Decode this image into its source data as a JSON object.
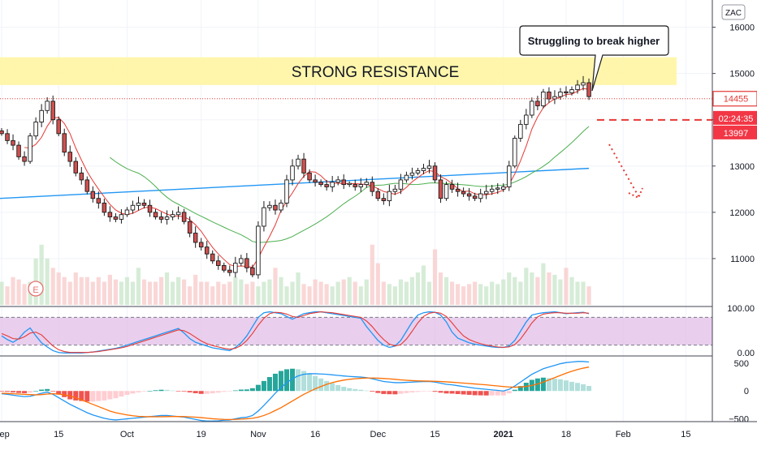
{
  "symbol": "ZAC",
  "chart_data": {
    "type": "candlestick",
    "y_range": [
      10000,
      16500
    ],
    "price_ticks": [
      11000,
      12000,
      13000,
      14000,
      15000,
      16000
    ],
    "price_tick_labels": [
      "11000",
      "12000",
      "13000",
      "14000",
      "15000",
      "16000"
    ],
    "x_ticks": [
      {
        "i": 0,
        "label": "Sep"
      },
      {
        "i": 10,
        "label": "15"
      },
      {
        "i": 22,
        "label": "Oct"
      },
      {
        "i": 35,
        "label": "19"
      },
      {
        "i": 45,
        "label": "Nov"
      },
      {
        "i": 55,
        "label": "16"
      },
      {
        "i": 66,
        "label": "Dec"
      },
      {
        "i": 76,
        "label": "15"
      },
      {
        "i": 88,
        "label": "2021"
      },
      {
        "i": 99,
        "label": "18"
      },
      {
        "i": 109,
        "label": "Feb"
      },
      {
        "i": 120,
        "label": "15"
      }
    ],
    "closes": [
      13700,
      13550,
      13450,
      13200,
      13100,
      13650,
      13950,
      14200,
      14400,
      14000,
      13700,
      13300,
      13100,
      12850,
      12700,
      12450,
      12300,
      12200,
      12000,
      11900,
      11850,
      11950,
      12050,
      12150,
      12200,
      12150,
      12000,
      11900,
      11850,
      11900,
      11950,
      12000,
      11800,
      11550,
      11350,
      11250,
      11100,
      10950,
      10850,
      10750,
      10700,
      10900,
      11000,
      10800,
      10650,
      11700,
      12100,
      12150,
      12050,
      12200,
      12700,
      13000,
      13150,
      12850,
      12700,
      12650,
      12600,
      12550,
      12650,
      12700,
      12600,
      12600,
      12550,
      12600,
      12650,
      12450,
      12300,
      12250,
      12450,
      12500,
      12700,
      12800,
      12850,
      12900,
      12950,
      13000,
      12700,
      12300,
      12600,
      12500,
      12450,
      12400,
      12350,
      12300,
      12400,
      12450,
      12500,
      12500,
      12550,
      13000,
      13600,
      13900,
      14100,
      14400,
      14300,
      14600,
      14450,
      14500,
      14600,
      14580,
      14650,
      14750,
      14800,
      14500
    ],
    "volumes": [
      10500,
      10400,
      10600,
      10550,
      10450,
      10500,
      11000,
      11300,
      11000,
      10800,
      10700,
      10600,
      10500,
      10700,
      10600,
      10600,
      10500,
      10600,
      10500,
      10650,
      10550,
      10500,
      10600,
      10500,
      10800,
      10550,
      10500,
      10500,
      10600,
      10700,
      10500,
      10600,
      10550,
      10400,
      10650,
      10500,
      10500,
      10400,
      10500,
      10450,
      10500,
      10600,
      10550,
      10450,
      10500,
      10400,
      10500,
      10550,
      10800,
      10600,
      10400,
      10500,
      10700,
      10450,
      10400,
      10550,
      10500,
      10450,
      10400,
      10500,
      10550,
      10600,
      10500,
      10400,
      10550,
      11300,
      10900,
      10500,
      10450,
      10400,
      10550,
      10500,
      10600,
      10700,
      10850,
      10500,
      11200,
      10700,
      10600,
      10500,
      10450,
      10400,
      10450,
      10500,
      10450,
      10400,
      10500,
      10450,
      10550,
      10700,
      10600,
      10500,
      10800,
      10700,
      10600,
      10900,
      10700,
      10650,
      10550,
      10800,
      10600,
      10500,
      10500,
      10400
    ],
    "ma20_first_index": 19,
    "ma20_last_value": 14000,
    "ma200_start": 12300,
    "ma200_end": 12950,
    "current_price": "14455",
    "time_to_close": "02:24:35",
    "target_price": "13997",
    "target_value": 13997,
    "resistance_zone": [
      14750,
      15350
    ],
    "resistance_label": "STRONG RESISTANCE",
    "callout_text": "Struggling to break higher",
    "earnings_marker": "E",
    "stochastic": {
      "range": [
        0,
        100
      ],
      "upper": 80,
      "lower": 20,
      "tick_labels": [
        "100.00",
        "0.00"
      ],
      "k": [
        40,
        32,
        26,
        34,
        48,
        57,
        40,
        25,
        16,
        8,
        4,
        3,
        3,
        3,
        3,
        4,
        5,
        7,
        9,
        11,
        13,
        16,
        20,
        24,
        28,
        32,
        36,
        40,
        44,
        48,
        52,
        56,
        46,
        34,
        26,
        22,
        18,
        14,
        12,
        10,
        8,
        15,
        25,
        40,
        60,
        80,
        90,
        92,
        90,
        88,
        82,
        76,
        82,
        88,
        90,
        92,
        92,
        90,
        88,
        86,
        84,
        82,
        80,
        78,
        60,
        45,
        30,
        20,
        15,
        18,
        30,
        50,
        70,
        85,
        90,
        92,
        91,
        85,
        70,
        48,
        35,
        30,
        25,
        22,
        20,
        18,
        16,
        15,
        15,
        18,
        30,
        50,
        70,
        85,
        88,
        90,
        91,
        92,
        90,
        88,
        89,
        90,
        91,
        88
      ],
      "d": [
        45,
        40,
        34,
        33,
        38,
        46,
        48,
        42,
        30,
        18,
        10,
        6,
        4,
        4,
        4,
        4,
        5,
        6,
        8,
        10,
        12,
        14,
        17,
        21,
        25,
        29,
        33,
        37,
        41,
        45,
        49,
        53,
        51,
        45,
        37,
        29,
        23,
        19,
        16,
        13,
        11,
        13,
        19,
        30,
        45,
        63,
        78,
        88,
        91,
        90,
        87,
        82,
        80,
        84,
        88,
        90,
        92,
        91,
        90,
        88,
        86,
        84,
        82,
        80,
        72,
        60,
        45,
        32,
        22,
        18,
        21,
        33,
        50,
        68,
        82,
        89,
        91,
        89,
        82,
        68,
        53,
        40,
        32,
        27,
        23,
        20,
        18,
        16,
        15,
        16,
        21,
        33,
        50,
        68,
        81,
        87,
        89,
        90,
        90,
        89,
        89,
        89,
        90,
        89
      ]
    },
    "macd": {
      "range": [
        -550,
        600
      ],
      "ticks": [
        500,
        0,
        -500
      ],
      "tick_labels": [
        "500",
        "0",
        "−500"
      ],
      "macd": [
        -50,
        -60,
        -75,
        -90,
        -100,
        -95,
        -70,
        -40,
        -20,
        -60,
        -120,
        -180,
        -240,
        -290,
        -340,
        -390,
        -430,
        -460,
        -490,
        -510,
        -520,
        -510,
        -500,
        -490,
        -480,
        -470,
        -460,
        -450,
        -440,
        -440,
        -450,
        -460,
        -470,
        -490,
        -510,
        -530,
        -540,
        -540,
        -535,
        -525,
        -520,
        -500,
        -480,
        -470,
        -440,
        -360,
        -260,
        -150,
        -40,
        60,
        150,
        220,
        270,
        300,
        310,
        310,
        305,
        300,
        290,
        280,
        270,
        262,
        255,
        250,
        240,
        220,
        195,
        170,
        160,
        150,
        150,
        155,
        160,
        165,
        170,
        170,
        160,
        140,
        120,
        110,
        95,
        80,
        65,
        50,
        40,
        30,
        20,
        10,
        0,
        30,
        90,
        160,
        230,
        300,
        350,
        400,
        430,
        460,
        490,
        510,
        520,
        530,
        530,
        520
      ],
      "signal": [
        -40,
        -45,
        -50,
        -55,
        -60,
        -65,
        -70,
        -65,
        -55,
        -50,
        -55,
        -70,
        -90,
        -120,
        -160,
        -200,
        -240,
        -280,
        -320,
        -360,
        -390,
        -410,
        -430,
        -445,
        -455,
        -460,
        -462,
        -463,
        -462,
        -460,
        -458,
        -458,
        -460,
        -465,
        -470,
        -478,
        -488,
        -498,
        -505,
        -510,
        -512,
        -510,
        -505,
        -498,
        -490,
        -470,
        -440,
        -400,
        -350,
        -300,
        -240,
        -180,
        -120,
        -60,
        -10,
        40,
        80,
        120,
        150,
        175,
        195,
        210,
        220,
        228,
        232,
        232,
        230,
        224,
        218,
        210,
        200,
        192,
        186,
        182,
        179,
        177,
        174,
        170,
        164,
        157,
        150,
        142,
        134,
        126,
        118,
        110,
        100,
        90,
        80,
        72,
        68,
        72,
        82,
        100,
        125,
        160,
        200,
        240,
        280,
        320,
        355,
        385,
        410,
        430
      ]
    }
  }
}
